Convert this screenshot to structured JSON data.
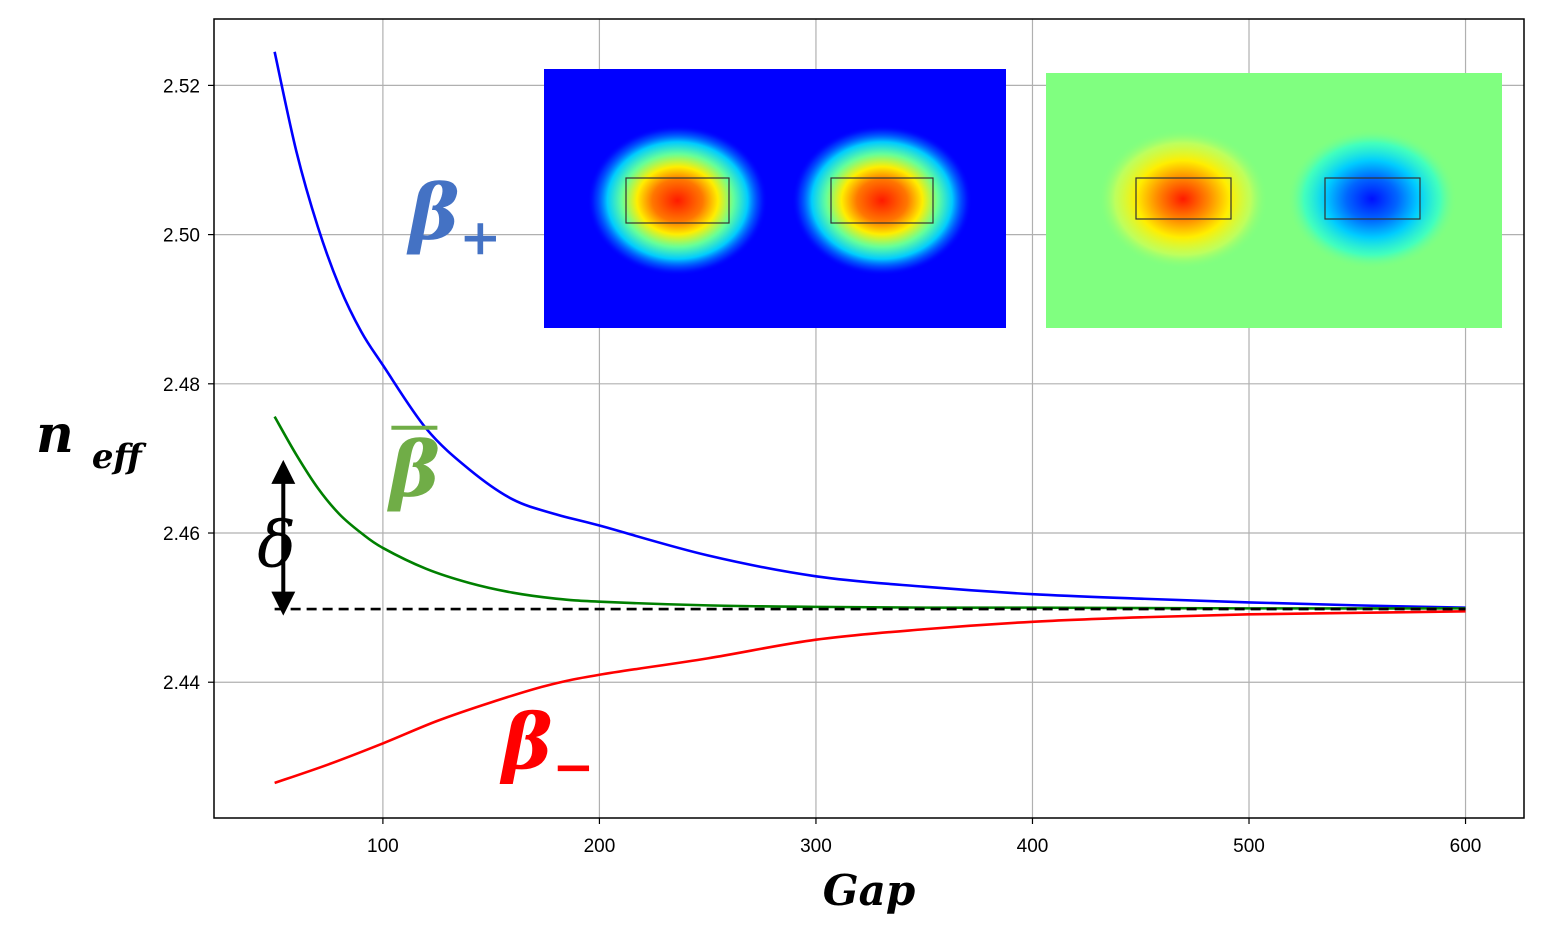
{
  "chart_data": {
    "type": "line",
    "xlabel": "Gap",
    "ylabel_main": "n",
    "ylabel_sub": "eff",
    "xlim": [
      22,
      627
    ],
    "ylim": [
      2.4218,
      2.5289
    ],
    "xticks": [
      100,
      200,
      300,
      400,
      500,
      600
    ],
    "yticks": [
      2.44,
      2.46,
      2.48,
      2.5,
      2.52
    ],
    "ytick_labels": [
      "2.44",
      "2.46",
      "2.48",
      "2.50",
      "2.52"
    ],
    "xtick_labels": [
      "100",
      "200",
      "300",
      "400",
      "500",
      "600"
    ],
    "grid": true,
    "series": [
      {
        "color": "#0000ff",
        "x": [
          50,
          60,
          70,
          80,
          90,
          100,
          120,
          140,
          160,
          180,
          200,
          250,
          300,
          350,
          400,
          450,
          500,
          550,
          600
        ],
        "values": [
          2.5245,
          2.5112,
          2.501,
          2.493,
          2.487,
          2.4825,
          2.474,
          2.4685,
          2.4645,
          2.4625,
          2.461,
          2.457,
          2.4542,
          2.4528,
          2.4518,
          2.4512,
          2.4507,
          2.4503,
          2.45
        ]
      },
      {
        "color": "#008000",
        "x": [
          50,
          60,
          70,
          80,
          90,
          100,
          120,
          140,
          160,
          180,
          200,
          250,
          300,
          350,
          400,
          500,
          600
        ],
        "values": [
          2.4756,
          2.4705,
          2.466,
          2.4625,
          2.46,
          2.458,
          2.4552,
          2.4533,
          2.452,
          2.4512,
          2.4508,
          2.4503,
          2.4501,
          2.45,
          2.45,
          2.4499,
          2.4499
        ]
      },
      {
        "color": "#ff0000",
        "x": [
          50,
          75,
          100,
          125,
          150,
          175,
          200,
          250,
          300,
          350,
          400,
          450,
          500,
          550,
          600
        ],
        "values": [
          2.4265,
          2.429,
          2.4318,
          2.4348,
          2.4373,
          2.4395,
          2.441,
          2.4432,
          2.4457,
          2.4471,
          2.4481,
          2.4487,
          2.4491,
          2.4493,
          2.4495
        ]
      }
    ],
    "reference_line": {
      "y": 2.4498,
      "x_range": [
        50,
        600
      ],
      "style": "dashed",
      "color": "#000000"
    },
    "annotations": {
      "beta_plus": {
        "main": "β",
        "sub": "+",
        "color": "#4472c4",
        "x": 112,
        "y": 2.4995
      },
      "beta_bar": {
        "main": "β",
        "color": "#70ad47",
        "x": 103,
        "y": 2.465
      },
      "beta_minus": {
        "main": "β",
        "sub": "−",
        "color": "#ff0000",
        "x": 155,
        "y": 2.4285
      },
      "delta": {
        "text": "δ",
        "color": "#000000",
        "x": 42,
        "y": 2.4555
      },
      "delta_arrow": {
        "x": 54,
        "y_from": 2.45,
        "y_to": 2.469
      }
    },
    "insets": [
      {
        "name": "symmetric-mode-field",
        "background": "#0000ff",
        "lobe_colors": [
          "#ff0000",
          "#ff0000"
        ]
      },
      {
        "name": "antisymmetric-mode-field",
        "background": "#80ff80",
        "lobe_colors": [
          "#ff0000",
          "#0000ff"
        ]
      }
    ]
  }
}
